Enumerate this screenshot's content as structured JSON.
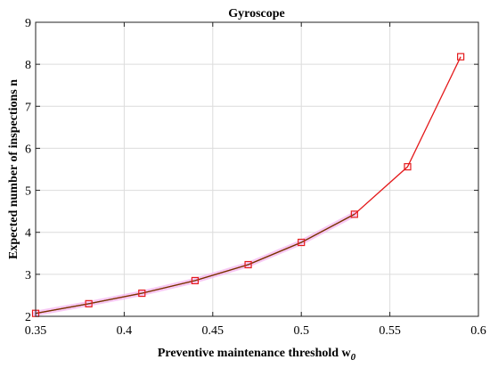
{
  "chart_data": {
    "type": "line",
    "title": "Gyroscope",
    "xlabel": "Preventive maintenance threshold w",
    "xlabel_subscript": "0",
    "ylabel": "Expected number of inspections n",
    "xlim": [
      0.35,
      0.6
    ],
    "ylim": [
      2,
      9
    ],
    "xticks": [
      "0.35",
      "0.4",
      "0.45",
      "0.5",
      "0.55",
      "0.6"
    ],
    "xtick_values": [
      0.35,
      0.4,
      0.45,
      0.5,
      0.55,
      0.6
    ],
    "yticks": [
      "2",
      "3",
      "4",
      "5",
      "6",
      "7",
      "8",
      "9"
    ],
    "ytick_values": [
      2,
      3,
      4,
      5,
      6,
      7,
      8,
      9
    ],
    "grid": true,
    "series": [
      {
        "line_color": "#e41a1c",
        "marker": "square",
        "marker_color": "#e41a1c",
        "x": [
          0.35,
          0.38,
          0.41,
          0.44,
          0.47,
          0.5,
          0.53,
          0.56,
          0.59
        ],
        "y": [
          2.07,
          2.3,
          2.55,
          2.85,
          3.23,
          3.76,
          4.43,
          5.56,
          8.18
        ]
      },
      {
        "line_color": "#6b3a00",
        "highlight_color": "#f3b2f0",
        "x": [
          0.35,
          0.38,
          0.41,
          0.44,
          0.47,
          0.5,
          0.53
        ],
        "y": [
          2.07,
          2.3,
          2.55,
          2.85,
          3.23,
          3.76,
          4.43
        ]
      }
    ]
  }
}
